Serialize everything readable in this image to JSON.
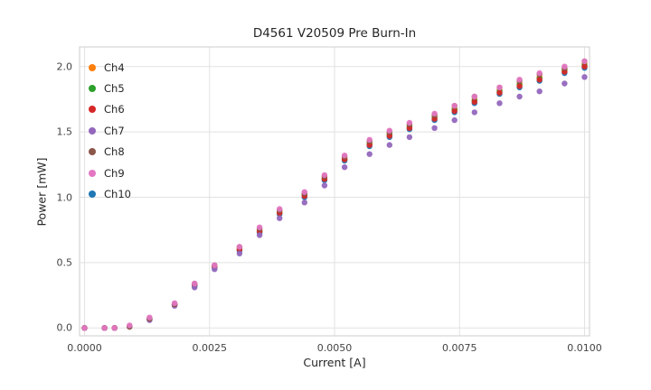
{
  "chart_data": {
    "type": "scatter",
    "title": "D4561 V20509 Pre Burn-In",
    "xlabel": "Current [A]",
    "ylabel": "Power [mW]",
    "xlim": [
      -0.0001,
      0.0101
    ],
    "ylim": [
      -0.06,
      2.15
    ],
    "grid": true,
    "grid_color": "#e2e2e2",
    "border_color": "#d6d6d6",
    "background_color": "#ffffff",
    "legend_position": "upper left",
    "marker_radius": 3.2,
    "x_ticks": [
      {
        "value": 0.0,
        "label": "0.0000"
      },
      {
        "value": 0.0025,
        "label": "0.0025"
      },
      {
        "value": 0.005,
        "label": "0.0050"
      },
      {
        "value": 0.0075,
        "label": "0.0075"
      },
      {
        "value": 0.01,
        "label": "0.0100"
      }
    ],
    "y_ticks": [
      {
        "value": 0.0,
        "label": "0.0"
      },
      {
        "value": 0.5,
        "label": "0.5"
      },
      {
        "value": 1.0,
        "label": "1.0"
      },
      {
        "value": 1.5,
        "label": "1.5"
      },
      {
        "value": 2.0,
        "label": "2.0"
      }
    ],
    "x": [
      0.0,
      0.0004,
      0.0006,
      0.0009,
      0.0013,
      0.0018,
      0.0022,
      0.0026,
      0.0031,
      0.0035,
      0.0039,
      0.0044,
      0.0048,
      0.0052,
      0.0057,
      0.0061,
      0.0065,
      0.007,
      0.0074,
      0.0078,
      0.0083,
      0.0087,
      0.0091,
      0.0096,
      0.01
    ],
    "series": [
      {
        "name": "Ch4",
        "color": "#ff7f0e",
        "values": [
          0.0,
          0.0,
          0.0,
          0.01,
          0.07,
          0.18,
          0.33,
          0.47,
          0.61,
          0.75,
          0.89,
          1.02,
          1.15,
          1.3,
          1.42,
          1.49,
          1.55,
          1.62,
          1.68,
          1.75,
          1.82,
          1.87,
          1.92,
          1.98,
          2.02
        ]
      },
      {
        "name": "Ch5",
        "color": "#2ca02c",
        "values": [
          0.0,
          0.0,
          0.0,
          0.01,
          0.07,
          0.18,
          0.33,
          0.47,
          0.6,
          0.74,
          0.88,
          1.02,
          1.14,
          1.29,
          1.41,
          1.48,
          1.54,
          1.61,
          1.67,
          1.74,
          1.81,
          1.86,
          1.91,
          1.97,
          2.01
        ]
      },
      {
        "name": "Ch6",
        "color": "#d62728",
        "values": [
          0.0,
          0.0,
          0.0,
          0.01,
          0.07,
          0.18,
          0.33,
          0.47,
          0.6,
          0.74,
          0.88,
          1.01,
          1.14,
          1.29,
          1.4,
          1.47,
          1.53,
          1.6,
          1.66,
          1.73,
          1.8,
          1.85,
          1.9,
          1.96,
          2.0
        ]
      },
      {
        "name": "Ch7",
        "color": "#9467bd",
        "values": [
          0.0,
          0.0,
          0.0,
          0.01,
          0.06,
          0.17,
          0.31,
          0.45,
          0.57,
          0.71,
          0.84,
          0.96,
          1.09,
          1.23,
          1.33,
          1.4,
          1.46,
          1.53,
          1.59,
          1.65,
          1.72,
          1.77,
          1.81,
          1.87,
          1.92
        ]
      },
      {
        "name": "Ch8",
        "color": "#8c564b",
        "values": [
          0.0,
          0.0,
          0.0,
          0.01,
          0.07,
          0.18,
          0.34,
          0.48,
          0.62,
          0.76,
          0.9,
          1.03,
          1.16,
          1.31,
          1.43,
          1.5,
          1.56,
          1.63,
          1.7,
          1.77,
          1.84,
          1.89,
          1.94,
          1.99,
          2.04
        ]
      },
      {
        "name": "Ch9",
        "color": "#e377c2",
        "values": [
          0.0,
          0.0,
          0.0,
          0.02,
          0.08,
          0.19,
          0.34,
          0.48,
          0.62,
          0.77,
          0.91,
          1.04,
          1.17,
          1.32,
          1.44,
          1.51,
          1.57,
          1.64,
          1.7,
          1.77,
          1.84,
          1.9,
          1.95,
          2.0,
          2.04
        ]
      },
      {
        "name": "Ch10",
        "color": "#1f77b4",
        "values": [
          0.0,
          0.0,
          0.0,
          0.01,
          0.07,
          0.18,
          0.32,
          0.46,
          0.59,
          0.73,
          0.87,
          1.0,
          1.13,
          1.28,
          1.39,
          1.46,
          1.52,
          1.59,
          1.65,
          1.72,
          1.79,
          1.84,
          1.89,
          1.95,
          1.99
        ]
      }
    ]
  }
}
